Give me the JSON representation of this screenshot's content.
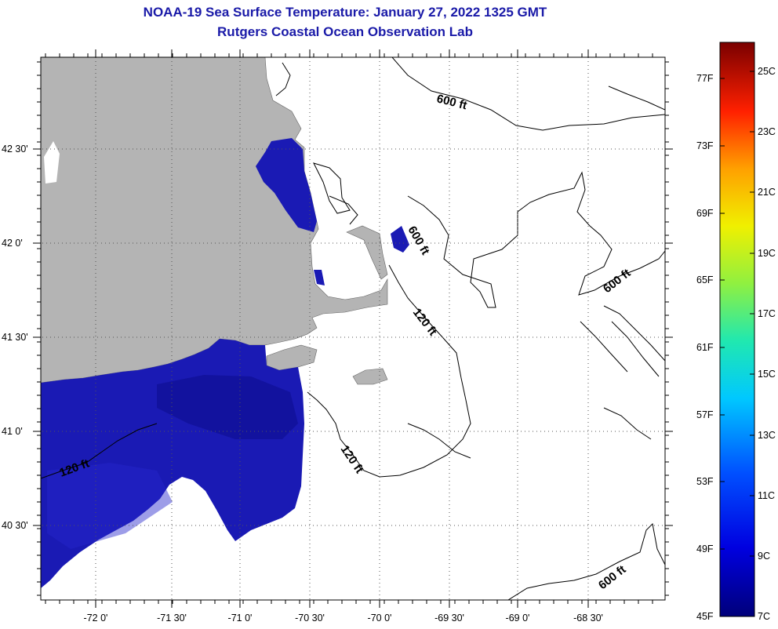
{
  "title": {
    "line1": "NOAA-19 Sea Surface Temperature:  January 27, 2022 1325 GMT",
    "line2": "Rutgers Coastal Ocean Observation Lab"
  },
  "colors": {
    "title": "#1a1aa8",
    "land": "#b4b4b4",
    "water_no_data": "#ffffff",
    "cold_water": "#1a1ab4"
  },
  "longitude_labels": [
    "-72 0'",
    "-71 30'",
    "-71 0'",
    "-70 30'",
    "-70 0'",
    "-69 30'",
    "-69 0'",
    "-68 30'"
  ],
  "latitude_labels": [
    "42 30'",
    "42 0'",
    "41 30'",
    "41 0'",
    "40 30'"
  ],
  "contour_labels": [
    "600 ft",
    "600 ft",
    "600 ft",
    "600 ft",
    "120 ft",
    "120 ft",
    "120 ft"
  ],
  "colorbar": {
    "fahrenheit_labels": [
      "77F",
      "73F",
      "69F",
      "65F",
      "61F",
      "57F",
      "53F",
      "49F",
      "45F"
    ],
    "celsius_labels": [
      "25C",
      "23C",
      "21C",
      "19C",
      "17C",
      "15C",
      "13C",
      "11C",
      "9C",
      "7C"
    ]
  }
}
